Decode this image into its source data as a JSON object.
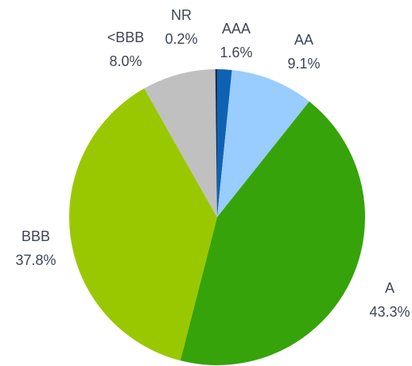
{
  "chart_data": {
    "type": "pie",
    "categories": [
      "AAA",
      "AA",
      "A",
      "BBB",
      "<BBB",
      "NR"
    ],
    "values": [
      1.6,
      9.1,
      43.3,
      37.8,
      8.0,
      0.2
    ],
    "value_labels": [
      "1.6%",
      "9.1%",
      "43.3%",
      "37.8%",
      "8.0%",
      "0.2%"
    ],
    "colors": [
      "#0f62b3",
      "#99ccff",
      "#36a30a",
      "#99c800",
      "#c0c0c0",
      "#1c2b45"
    ]
  }
}
